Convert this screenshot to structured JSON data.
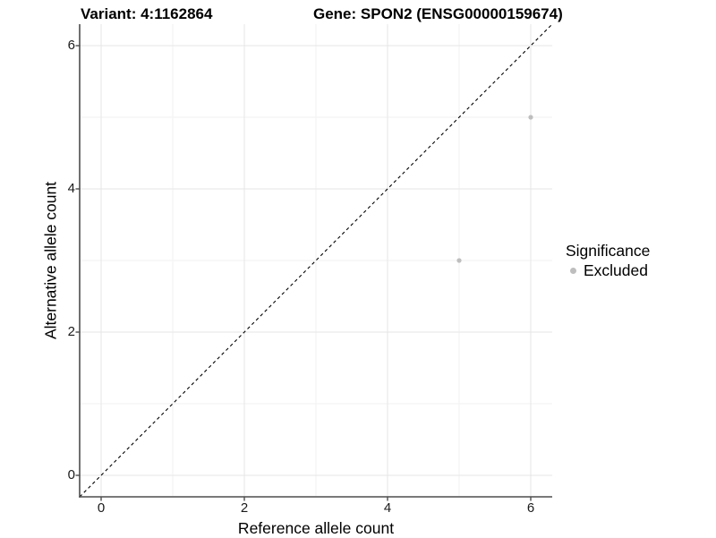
{
  "header": {
    "variant_title": "Variant: 4:1162864",
    "gene_title": "Gene: SPON2 (ENSG00000159674)"
  },
  "axes": {
    "x_title": "Reference allele count",
    "y_title": "Alternative allele count",
    "x_tick_labels": [
      "0",
      "2",
      "4",
      "6"
    ],
    "y_tick_labels": [
      "0",
      "2",
      "4",
      "6"
    ]
  },
  "legend": {
    "title": "Significance",
    "entries": [
      {
        "label": "Excluded",
        "marker": "circle-icon",
        "color": "#bebebe"
      }
    ],
    "position": "right-middle"
  },
  "colors": {
    "background": "#ffffff",
    "point": "#bebebe",
    "axis_line": "#4d4d4d",
    "grid_major": "#e6e6e6",
    "grid_minor": "#f2f2f2",
    "identity_line": "#000000",
    "text": "#000000"
  },
  "chart_data": {
    "type": "scatter",
    "title": "Variant: 4:1162864    Gene: SPON2 (ENSG00000159674)",
    "xlabel": "Reference allele count",
    "ylabel": "Alternative allele count",
    "xlim": [
      -0.3,
      6.3
    ],
    "ylim": [
      -0.3,
      6.3
    ],
    "x_ticks": [
      0,
      2,
      4,
      6
    ],
    "y_ticks": [
      0,
      2,
      4,
      6
    ],
    "x_minor_ticks": [
      1,
      3,
      5
    ],
    "y_minor_ticks": [
      1,
      3,
      5
    ],
    "grid": "major and minor gridlines, white panel",
    "legend_position": "right",
    "series": [
      {
        "name": "Excluded",
        "color": "#bebebe",
        "marker_radius": 2.6,
        "points": [
          {
            "x": 6,
            "y": 5
          },
          {
            "x": 5,
            "y": 3
          }
        ]
      }
    ],
    "reference_line": {
      "type": "identity y=x",
      "style": "dashed",
      "color": "#000000",
      "span": [
        -0.3,
        6.3
      ]
    }
  }
}
